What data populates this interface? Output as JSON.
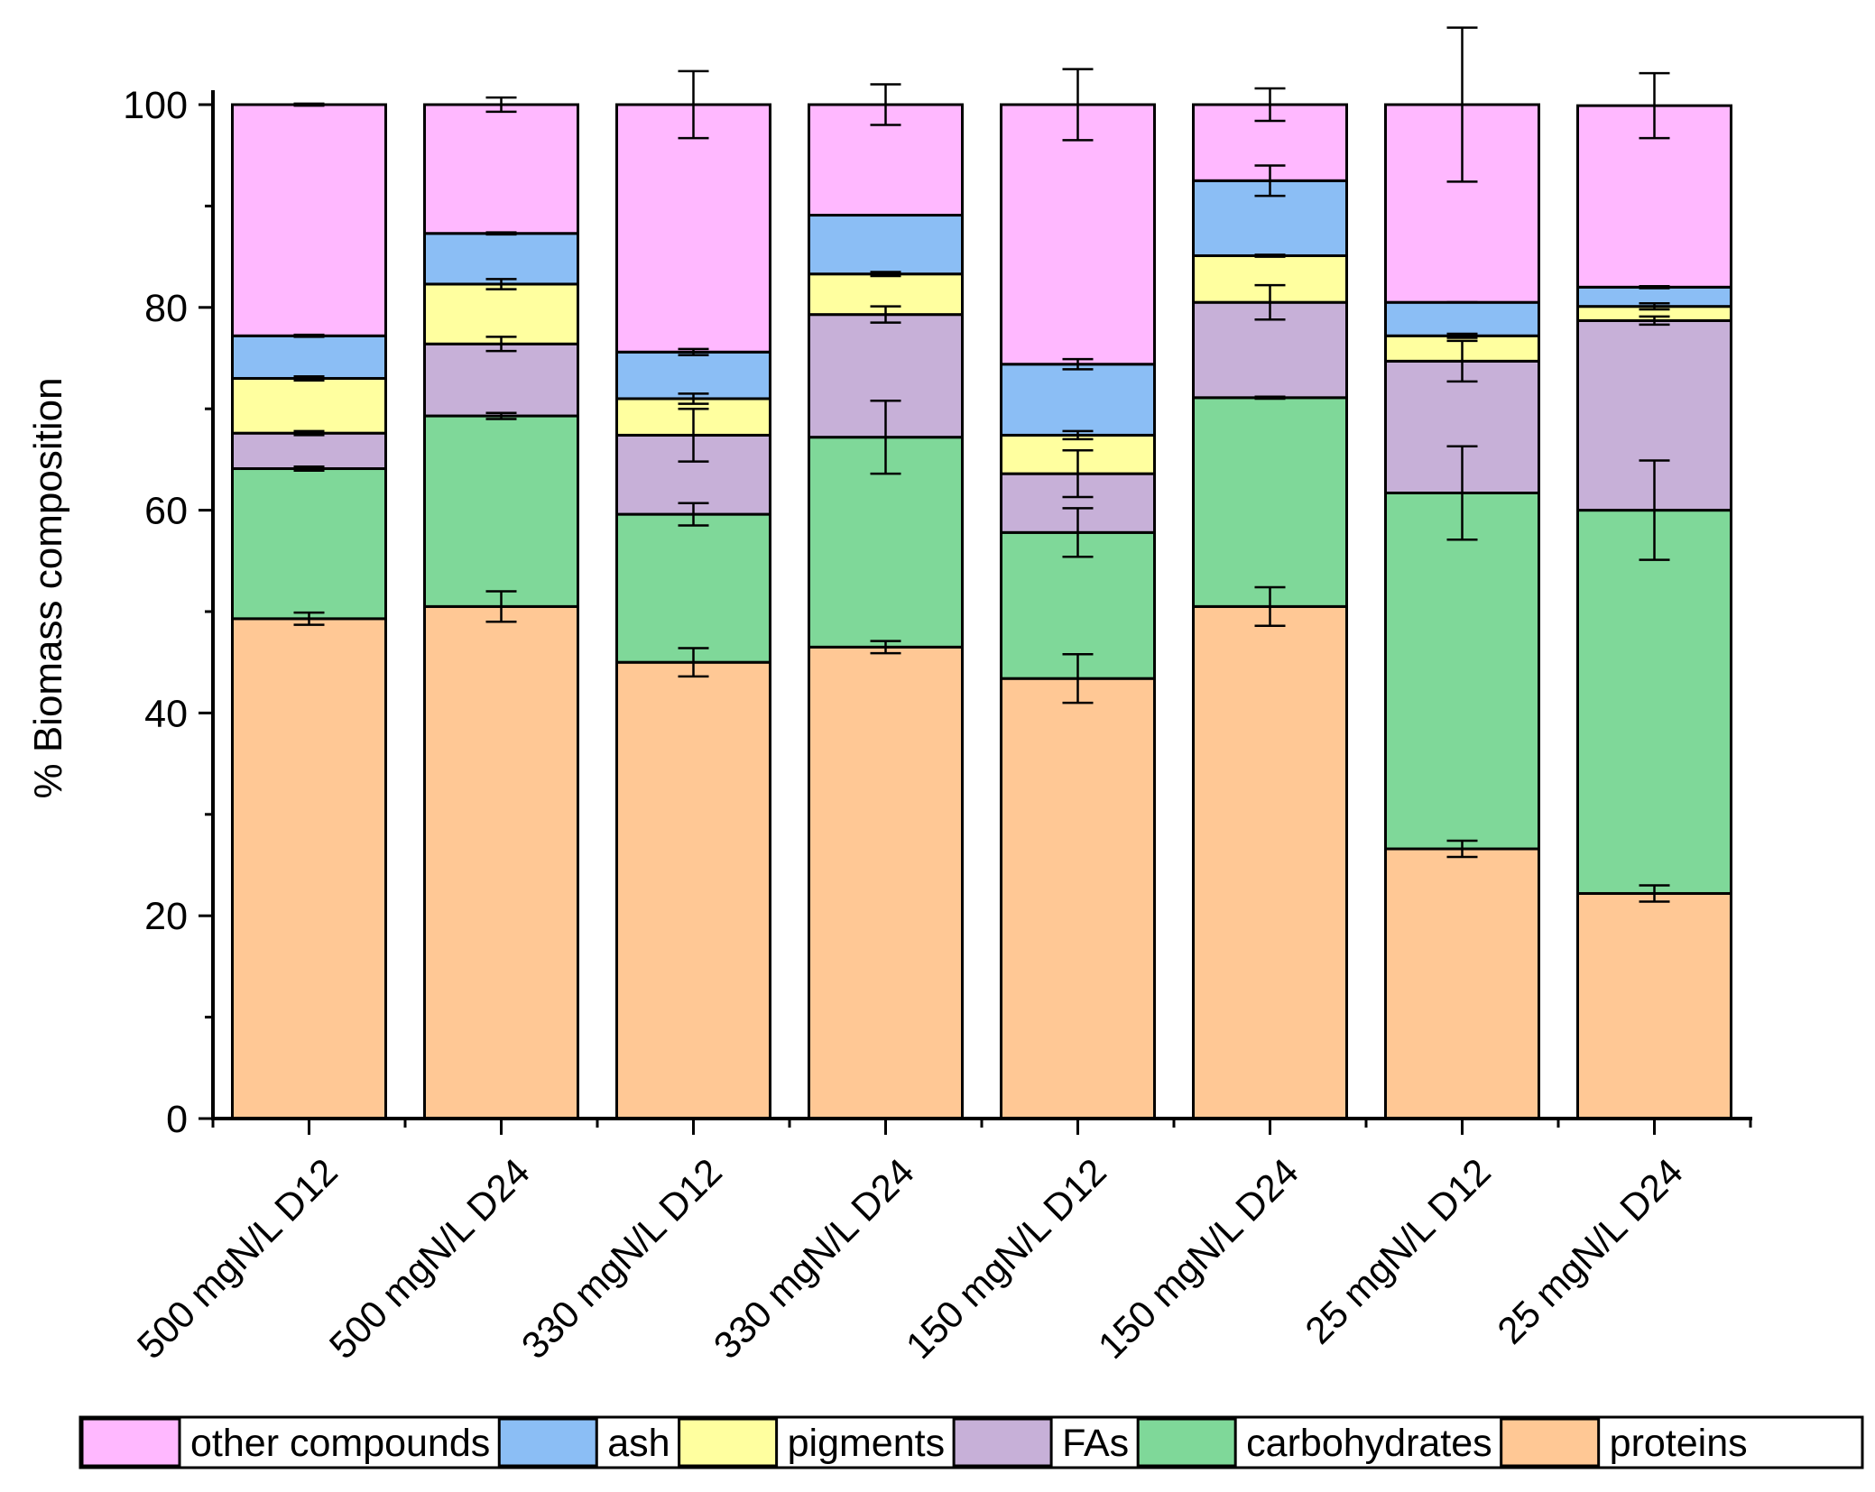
{
  "chart_data": {
    "type": "bar",
    "stacked": true,
    "title": "",
    "xlabel": "",
    "ylabel": "% Biomass composition",
    "ylim": [
      0,
      100
    ],
    "yticks": [
      "0",
      "20",
      "40",
      "60",
      "80",
      "100"
    ],
    "legend_position": "bottom",
    "categories": [
      "500 mgN/L D12",
      "500 mgN/L D24",
      "330 mgN/L D12",
      "330 mgN/L D24",
      "150 mgN/L D12",
      "150 mgN/L D24",
      "25 mgN/L D12",
      "25 mgN/L D24"
    ],
    "series": [
      {
        "name": "proteins",
        "color": "#FFC895",
        "values": [
          49.3,
          50.5,
          45.0,
          46.5,
          43.4,
          50.5,
          26.6,
          22.2
        ],
        "errors": [
          0.6,
          1.5,
          1.4,
          0.6,
          2.4,
          1.9,
          0.8,
          0.8
        ]
      },
      {
        "name": "carbohydrates",
        "color": "#7FD899",
        "values": [
          14.8,
          18.8,
          14.6,
          20.7,
          14.4,
          20.6,
          35.1,
          37.8
        ],
        "errors": [
          0.2,
          0.3,
          1.1,
          3.6,
          2.4,
          0.1,
          4.6,
          4.9
        ]
      },
      {
        "name": "FAs",
        "color": "#C7B0D8",
        "values": [
          3.5,
          7.1,
          7.8,
          12.1,
          5.8,
          9.4,
          13.0,
          18.7
        ],
        "errors": [
          0.2,
          0.7,
          2.6,
          0.8,
          2.3,
          1.7,
          2.0,
          0.4
        ]
      },
      {
        "name": "pigments",
        "color": "#FFFF9F",
        "values": [
          5.4,
          5.9,
          3.6,
          4.0,
          3.8,
          4.6,
          2.5,
          1.4
        ],
        "errors": [
          0.2,
          0.5,
          0.5,
          0.2,
          0.4,
          0.1,
          0.2,
          0.3
        ]
      },
      {
        "name": "ash",
        "color": "#8BBEF5",
        "values": [
          4.2,
          5.0,
          4.6,
          5.8,
          7.0,
          7.4,
          3.3,
          1.9
        ],
        "errors": [
          0.1,
          0.1,
          0.3,
          0.0,
          0.5,
          1.5,
          0.0,
          0.1
        ]
      },
      {
        "name": "other compounds",
        "color": "#FFB8FF",
        "values": [
          22.8,
          12.7,
          24.4,
          10.9,
          25.6,
          7.5,
          19.5,
          17.9
        ],
        "errors": [
          0.1,
          0.7,
          3.3,
          2.0,
          3.5,
          1.6,
          7.6,
          3.2
        ]
      }
    ],
    "legend_order": [
      "other compounds",
      "ash",
      "pigments",
      "FAs",
      "carbohydrates",
      "proteins"
    ]
  }
}
